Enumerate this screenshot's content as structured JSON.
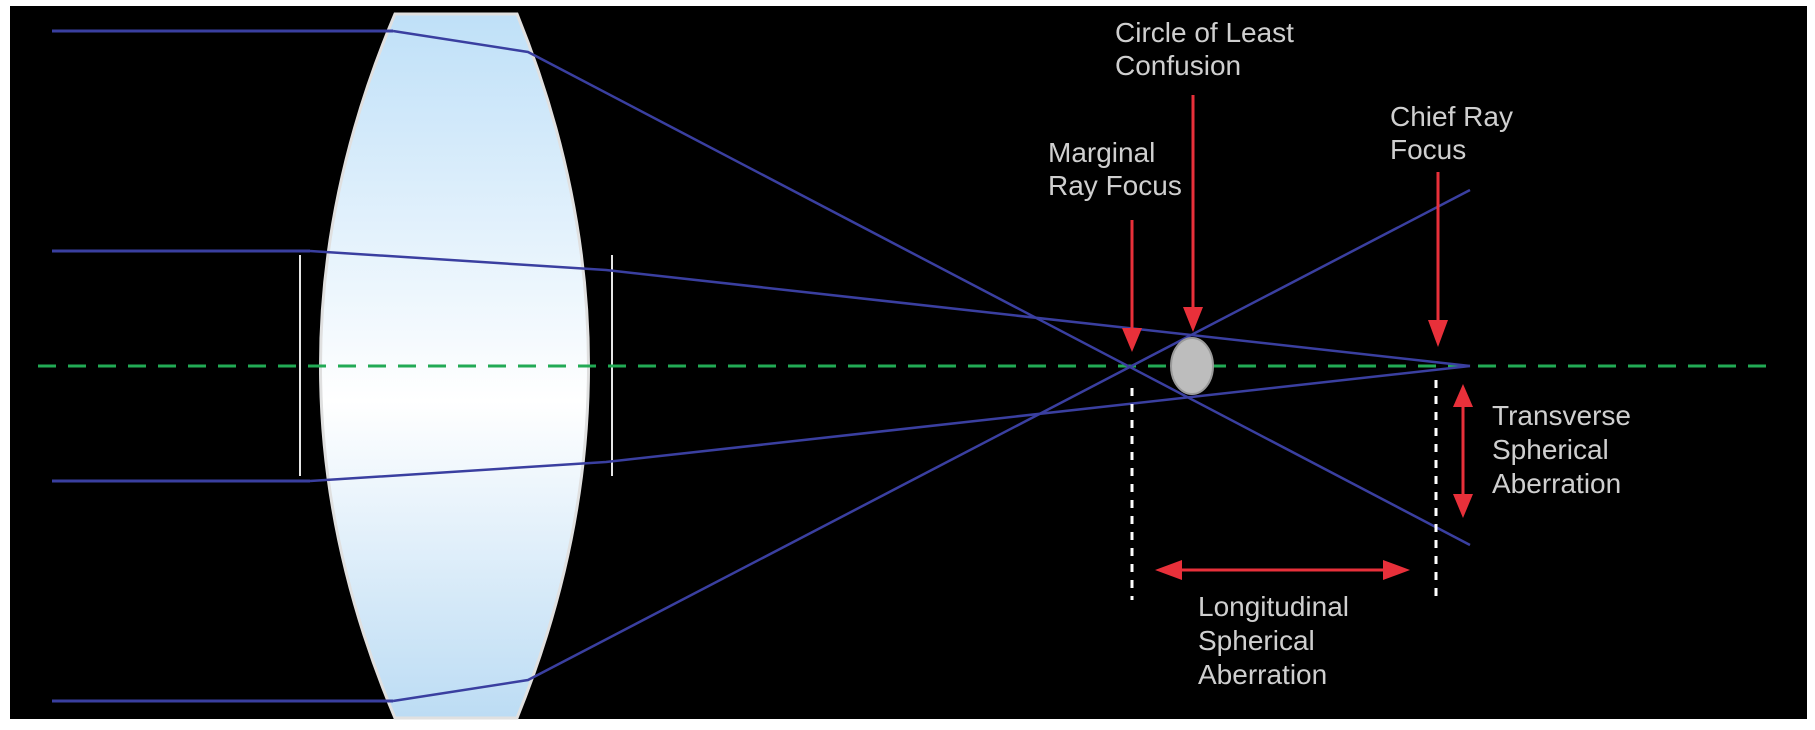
{
  "labels": {
    "circle_of_least_confusion": [
      "Circle of Least",
      "Confusion"
    ],
    "marginal_ray_focus": [
      "Marginal",
      "Ray Focus"
    ],
    "chief_ray_focus": [
      "Chief Ray",
      "Focus"
    ],
    "transverse_spherical_aberration": [
      "Transverse",
      "Spherical",
      "Aberration"
    ],
    "longitudinal_spherical_aberration": [
      "Longitudinal",
      "Spherical",
      "Aberration"
    ]
  },
  "colors": {
    "background": "#000000",
    "ray": "#3a3fa0",
    "optical_axis": "#22aa55",
    "arrow": "#e8303a",
    "label_text": "#cfcfcf",
    "lens_edge": "#e0e0e0",
    "lens_fill_top": "#bfe0f8",
    "lens_fill_mid": "#ffffff",
    "guide_line": "#ffffff",
    "confusion_disk": "#bdbdbd"
  }
}
